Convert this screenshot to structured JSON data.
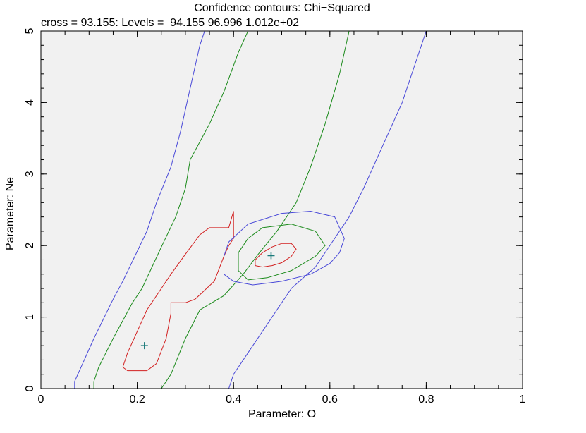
{
  "chart_data": {
    "type": "contour",
    "title": "Confidence contours: Chi−Squared",
    "subtitle": "cross = 93.155: Levels =  94.155 96.996 1.012e+02",
    "xlabel": "Parameter: O",
    "ylabel": "Parameter: Ne",
    "xlim": [
      0,
      1
    ],
    "ylim": [
      0,
      5
    ],
    "x_ticks": [
      "0",
      "0.2",
      "0.4",
      "0.6",
      "0.8",
      "1"
    ],
    "y_ticks": [
      "0",
      "1",
      "2",
      "3",
      "4",
      "5"
    ],
    "cross": 93.155,
    "levels": [
      94.155,
      96.996,
      101.2
    ],
    "colors": {
      "background": "#f1f1f1",
      "level_1": "#d22020",
      "level_2": "#1a8a1a",
      "level_3": "#4848d8",
      "marker": "#1a7a7a"
    },
    "markers": [
      {
        "x": 0.215,
        "y": 0.6
      },
      {
        "x": 0.478,
        "y": 1.86
      }
    ],
    "contours": [
      {
        "level": 94.155,
        "color_key": "level_1",
        "closed": true,
        "points": [
          [
            0.18,
            0.25
          ],
          [
            0.17,
            0.3
          ],
          [
            0.18,
            0.5
          ],
          [
            0.2,
            0.8
          ],
          [
            0.22,
            1.1
          ],
          [
            0.25,
            1.4
          ],
          [
            0.27,
            1.6
          ],
          [
            0.3,
            1.88
          ],
          [
            0.33,
            2.15
          ],
          [
            0.35,
            2.25
          ],
          [
            0.39,
            2.25
          ],
          [
            0.4,
            2.48
          ],
          [
            0.4,
            2.1
          ],
          [
            0.39,
            2.0
          ],
          [
            0.38,
            1.85
          ],
          [
            0.36,
            1.5
          ],
          [
            0.32,
            1.25
          ],
          [
            0.3,
            1.2
          ],
          [
            0.27,
            1.2
          ],
          [
            0.27,
            1.05
          ],
          [
            0.26,
            0.7
          ],
          [
            0.24,
            0.35
          ],
          [
            0.22,
            0.25
          ]
        ]
      },
      {
        "level": 94.155,
        "color_key": "level_1",
        "closed": true,
        "points": [
          [
            0.445,
            1.72
          ],
          [
            0.445,
            1.8
          ],
          [
            0.46,
            1.9
          ],
          [
            0.48,
            1.98
          ],
          [
            0.5,
            2.03
          ],
          [
            0.52,
            2.03
          ],
          [
            0.53,
            1.95
          ],
          [
            0.52,
            1.85
          ],
          [
            0.5,
            1.76
          ],
          [
            0.48,
            1.72
          ],
          [
            0.46,
            1.7
          ]
        ]
      },
      {
        "level": 96.996,
        "color_key": "level_2",
        "closed": false,
        "points": [
          [
            0.11,
            0.0
          ],
          [
            0.11,
            0.1
          ],
          [
            0.12,
            0.3
          ],
          [
            0.15,
            0.7
          ],
          [
            0.19,
            1.2
          ],
          [
            0.21,
            1.4
          ],
          [
            0.25,
            1.98
          ],
          [
            0.28,
            2.4
          ],
          [
            0.3,
            2.8
          ],
          [
            0.31,
            3.2
          ],
          [
            0.35,
            3.7
          ],
          [
            0.38,
            4.15
          ],
          [
            0.41,
            4.7
          ],
          [
            0.43,
            5.0
          ]
        ]
      },
      {
        "level": 96.996,
        "color_key": "level_2",
        "closed": false,
        "points": [
          [
            0.25,
            0.0
          ],
          [
            0.27,
            0.2
          ],
          [
            0.3,
            0.7
          ],
          [
            0.33,
            1.1
          ],
          [
            0.38,
            1.3
          ],
          [
            0.42,
            1.6
          ],
          [
            0.45,
            1.87
          ],
          [
            0.49,
            2.2
          ],
          [
            0.53,
            2.6
          ],
          [
            0.56,
            3.1
          ],
          [
            0.59,
            3.7
          ],
          [
            0.62,
            4.4
          ],
          [
            0.64,
            5.0
          ]
        ]
      },
      {
        "level": 96.996,
        "color_key": "level_2",
        "closed": true,
        "points": [
          [
            0.41,
            1.65
          ],
          [
            0.43,
            1.52
          ],
          [
            0.47,
            1.55
          ],
          [
            0.52,
            1.65
          ],
          [
            0.57,
            1.85
          ],
          [
            0.59,
            2.0
          ],
          [
            0.57,
            2.2
          ],
          [
            0.52,
            2.3
          ],
          [
            0.46,
            2.25
          ],
          [
            0.43,
            2.1
          ],
          [
            0.41,
            1.9
          ]
        ]
      },
      {
        "level": 101.2,
        "color_key": "level_3",
        "closed": false,
        "points": [
          [
            0.07,
            0.0
          ],
          [
            0.07,
            0.1
          ],
          [
            0.09,
            0.4
          ],
          [
            0.11,
            0.7
          ],
          [
            0.15,
            1.25
          ],
          [
            0.17,
            1.5
          ],
          [
            0.22,
            2.2
          ],
          [
            0.24,
            2.6
          ],
          [
            0.27,
            3.1
          ],
          [
            0.29,
            3.6
          ],
          [
            0.31,
            4.2
          ],
          [
            0.33,
            4.8
          ],
          [
            0.34,
            5.0
          ]
        ]
      },
      {
        "level": 101.2,
        "color_key": "level_3",
        "closed": false,
        "points": [
          [
            0.39,
            0.0
          ],
          [
            0.4,
            0.2
          ],
          [
            0.43,
            0.5
          ],
          [
            0.48,
            1.0
          ],
          [
            0.52,
            1.4
          ],
          [
            0.57,
            1.7
          ],
          [
            0.64,
            2.4
          ],
          [
            0.67,
            2.8
          ],
          [
            0.71,
            3.4
          ],
          [
            0.75,
            4.0
          ],
          [
            0.78,
            4.6
          ],
          [
            0.8,
            5.0
          ]
        ]
      },
      {
        "level": 101.2,
        "color_key": "level_3",
        "closed": true,
        "points": [
          [
            0.38,
            1.6
          ],
          [
            0.4,
            1.5
          ],
          [
            0.44,
            1.45
          ],
          [
            0.5,
            1.5
          ],
          [
            0.56,
            1.6
          ],
          [
            0.6,
            1.75
          ],
          [
            0.62,
            1.9
          ],
          [
            0.63,
            2.1
          ],
          [
            0.61,
            2.4
          ],
          [
            0.56,
            2.48
          ],
          [
            0.5,
            2.45
          ],
          [
            0.43,
            2.3
          ],
          [
            0.39,
            2.05
          ],
          [
            0.38,
            1.85
          ]
        ]
      }
    ]
  }
}
